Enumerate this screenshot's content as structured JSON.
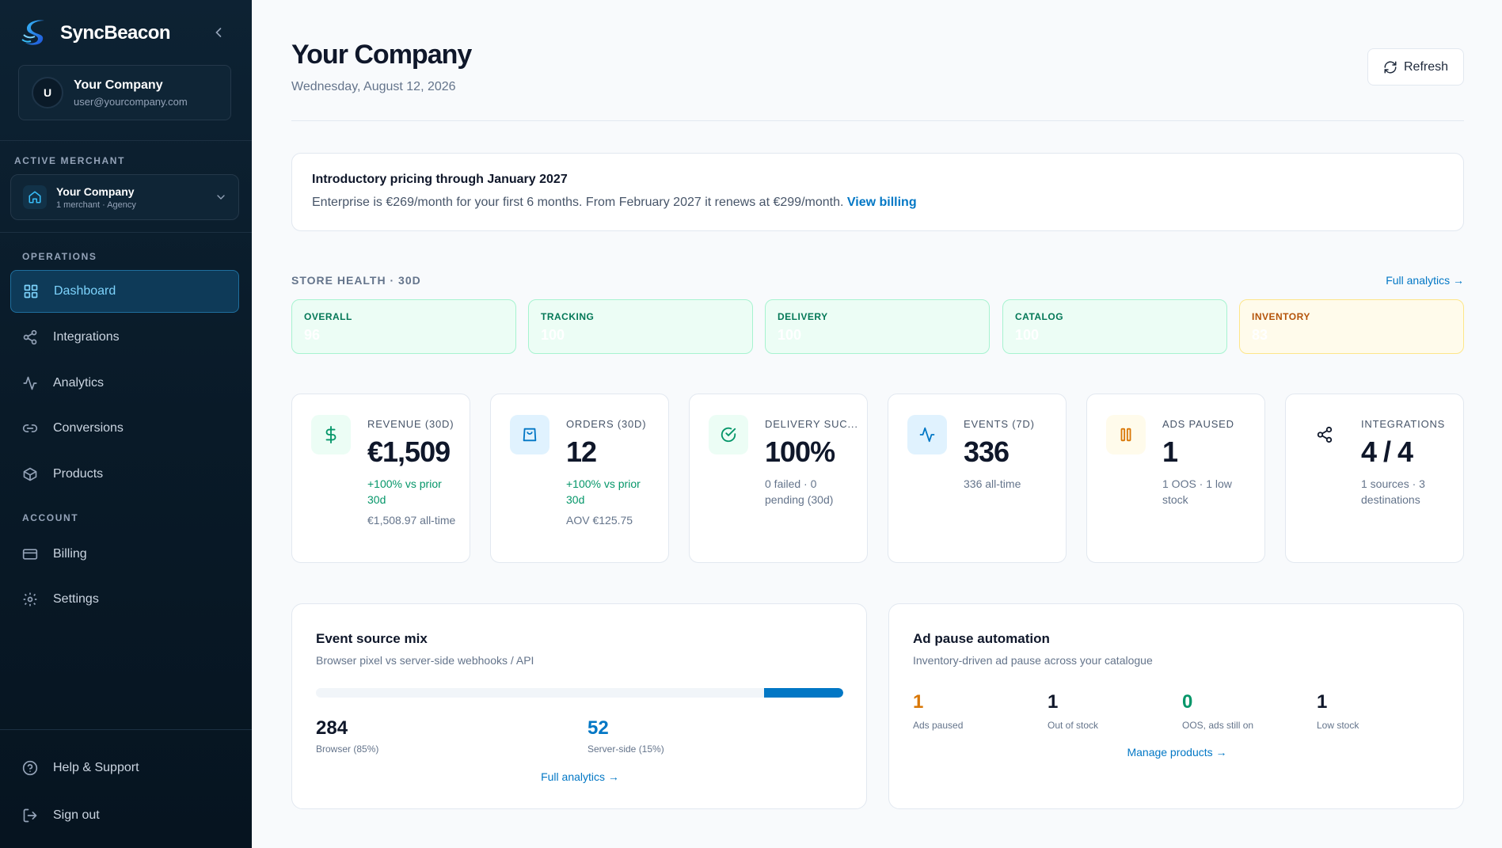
{
  "sidebar": {
    "brand": "SyncBeacon",
    "user": {
      "initial": "U",
      "name": "Your Company",
      "email": "user@yourcompany.com"
    },
    "active_merchant_label": "ACTIVE MERCHANT",
    "merchant": {
      "name": "Your Company",
      "sub": "1 merchant · Agency"
    },
    "operations_label": "OPERATIONS",
    "operations": [
      {
        "label": "Dashboard",
        "icon": "grid-icon"
      },
      {
        "label": "Integrations",
        "icon": "share-icon"
      },
      {
        "label": "Analytics",
        "icon": "activity-icon"
      },
      {
        "label": "Conversions",
        "icon": "link-icon"
      },
      {
        "label": "Products",
        "icon": "box-icon"
      }
    ],
    "account_label": "ACCOUNT",
    "account": [
      {
        "label": "Billing",
        "icon": "credit-card-icon"
      },
      {
        "label": "Settings",
        "icon": "gear-icon"
      }
    ],
    "footer": [
      {
        "label": "Help & Support",
        "icon": "help-circle-icon"
      },
      {
        "label": "Sign out",
        "icon": "logout-icon"
      }
    ]
  },
  "header": {
    "title": "Your Company",
    "date": "Wednesday, August 12, 2026",
    "refresh_label": "Refresh"
  },
  "banner": {
    "title": "Introductory pricing through January 2027",
    "text": "Enterprise is €269/month for your first 6 months. From February 2027 it renews at €299/month.",
    "link": "View billing"
  },
  "store_health": {
    "label": "STORE HEALTH · 30D",
    "link": "Full analytics →",
    "cards": [
      {
        "name": "OVERALL",
        "value": "96",
        "status": "green"
      },
      {
        "name": "TRACKING",
        "value": "100",
        "status": "green"
      },
      {
        "name": "DELIVERY",
        "value": "100",
        "status": "green"
      },
      {
        "name": "CATALOG",
        "value": "100",
        "status": "green"
      },
      {
        "name": "INVENTORY",
        "value": "83",
        "status": "amber"
      }
    ]
  },
  "kpis": [
    {
      "label": "REVENUE (30D)",
      "value": "€1,509",
      "sub": "+100% vs prior 30d",
      "sub2": "€1,508.97 all-time",
      "icon": "dollar-icon"
    },
    {
      "label": "ORDERS (30D)",
      "value": "12",
      "sub": "+100% vs prior 30d",
      "sub2": "AOV €125.75",
      "icon": "shopping-bag-icon"
    },
    {
      "label": "DELIVERY SUC...",
      "value": "100%",
      "sub": "0 failed · 0 pending (30d)",
      "sub2": "",
      "icon": "check-circle-icon"
    },
    {
      "label": "EVENTS (7D)",
      "value": "336",
      "sub": "336 all-time",
      "sub2": "",
      "icon": "activity-icon"
    },
    {
      "label": "ADS PAUSED",
      "value": "1",
      "sub": "1 OOS · 1 low stock",
      "sub2": "",
      "icon": "pause-icon"
    },
    {
      "label": "INTEGRATIONS",
      "value": "4 / 4",
      "sub": "1 sources · 3 destinations",
      "sub2": "",
      "icon": "share-icon"
    }
  ],
  "event_mix": {
    "title": "Event source mix",
    "subtitle": "Browser pixel vs server-side webhooks / API",
    "browser_fraction": 0.85,
    "server_fraction": 0.15,
    "browser_value": "284",
    "browser_label": "Browser (85%)",
    "server_value": "52",
    "server_label": "Server-side (15%)",
    "link": "Full analytics →"
  },
  "ad_pause": {
    "title": "Ad pause automation",
    "subtitle": "Inventory-driven ad pause across your catalogue",
    "stats": [
      {
        "value": "1",
        "label": "Ads paused",
        "color": "#d97706"
      },
      {
        "value": "1",
        "label": "Out of stock",
        "color": "#0f172a"
      },
      {
        "value": "0",
        "label": "OOS, ads still on",
        "color": "#059669"
      },
      {
        "value": "1",
        "label": "Low stock",
        "color": "#0f172a"
      }
    ],
    "link": "Manage products →"
  },
  "colors": {
    "accent": "#0277c5",
    "sidebar_bg": "#0b1e2d",
    "green": "#059669",
    "amber": "#d97706"
  }
}
